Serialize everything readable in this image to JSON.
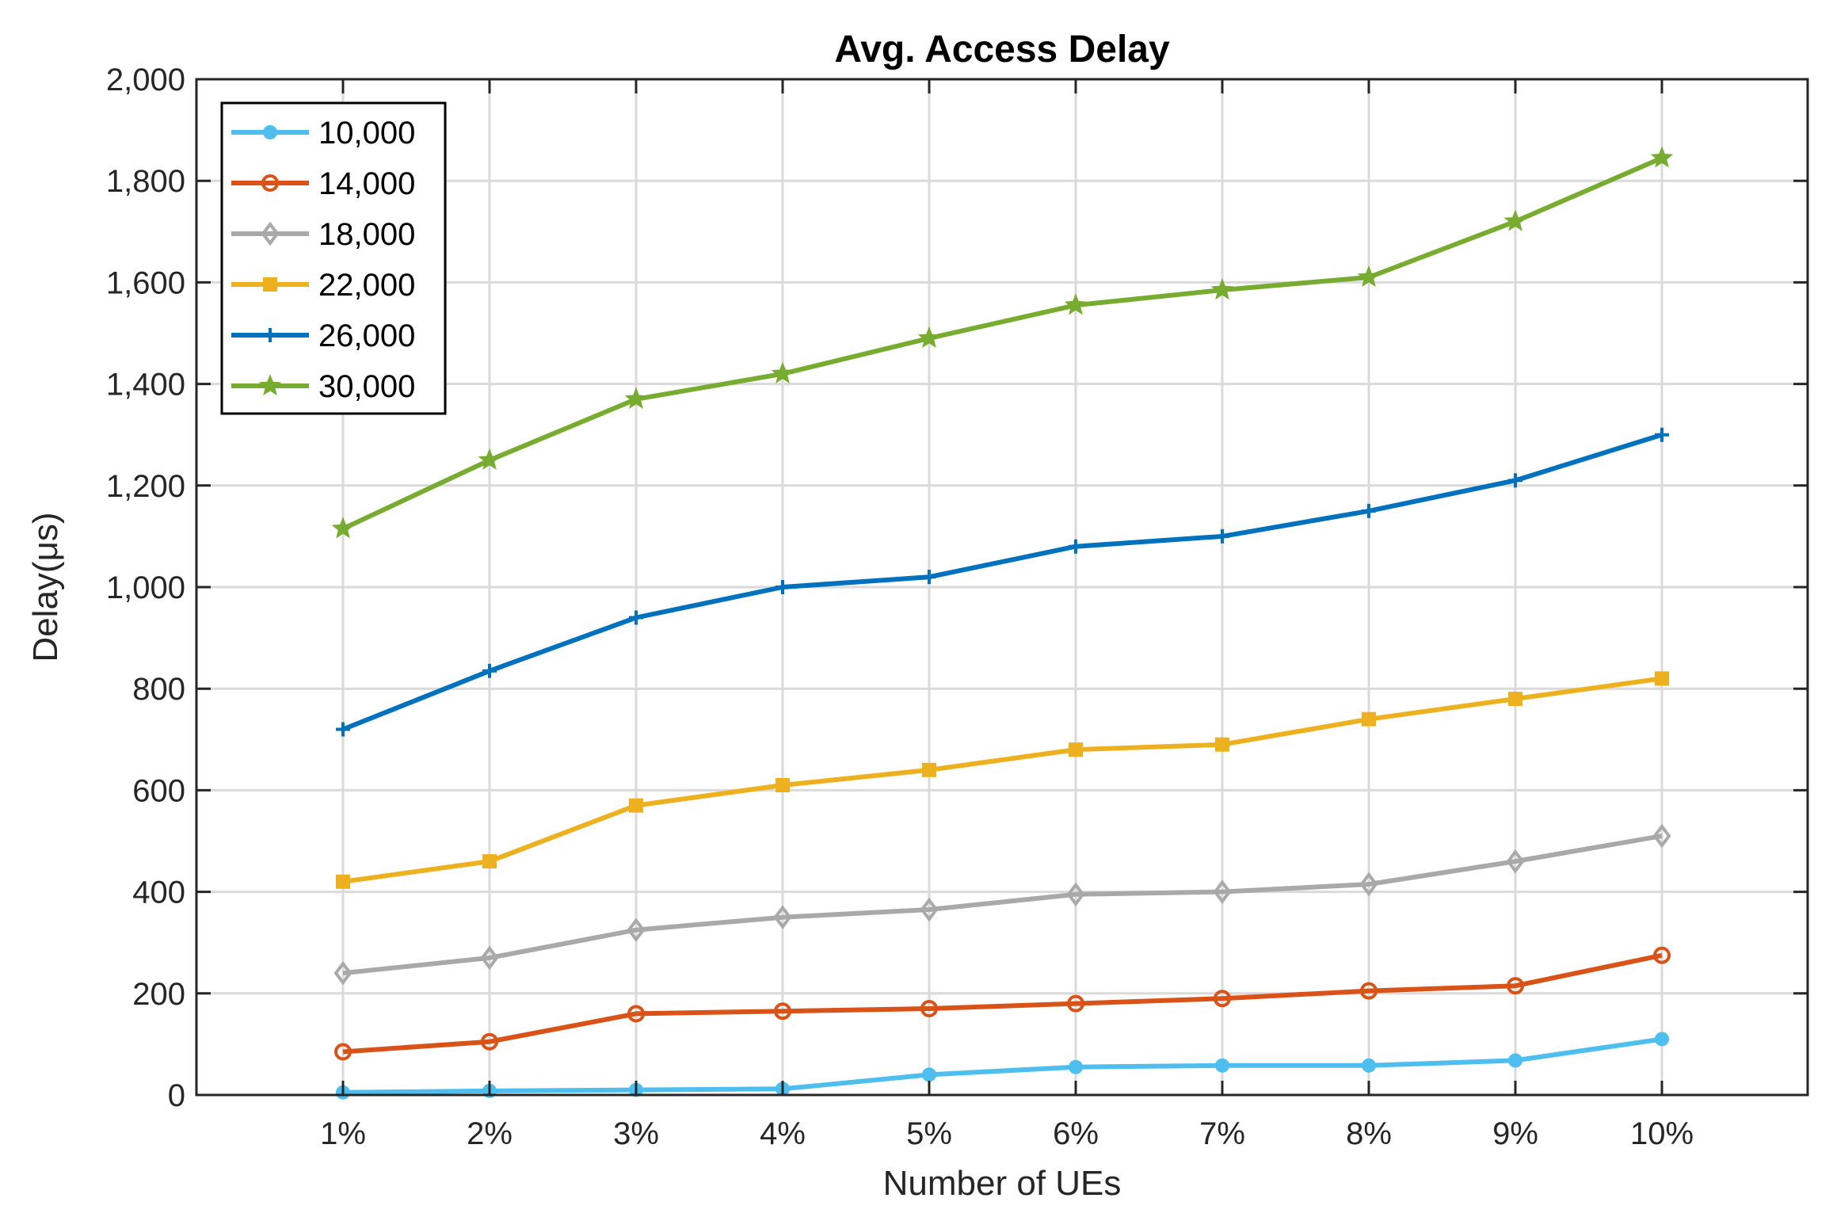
{
  "chart_data": {
    "type": "line",
    "title": "Avg. Access Delay",
    "xlabel": "Number of UEs",
    "ylabel": "Delay(μs)",
    "categories": [
      "1%",
      "2%",
      "3%",
      "4%",
      "5%",
      "6%",
      "7%",
      "8%",
      "9%",
      "10%"
    ],
    "ylim": [
      0,
      2000
    ],
    "yticks": [
      0,
      200,
      400,
      600,
      800,
      1000,
      1200,
      1400,
      1600,
      1800,
      2000
    ],
    "ytick_labels": [
      "0",
      "200",
      "400",
      "600",
      "800",
      "1,000",
      "1,200",
      "1,400",
      "1,600",
      "1,800",
      "2,000"
    ],
    "grid": true,
    "legend_position": "top-left",
    "series": [
      {
        "name": "10,000",
        "color": "#4DBEEE",
        "marker": "dot",
        "values": [
          5,
          8,
          10,
          12,
          40,
          55,
          58,
          58,
          68,
          110
        ]
      },
      {
        "name": "14,000",
        "color": "#D95319",
        "marker": "circle",
        "values": [
          85,
          105,
          160,
          165,
          170,
          180,
          190,
          205,
          215,
          275
        ]
      },
      {
        "name": "18,000",
        "color": "#A9A9A9",
        "marker": "diamond",
        "values": [
          240,
          270,
          325,
          350,
          365,
          395,
          400,
          415,
          460,
          510
        ]
      },
      {
        "name": "22,000",
        "color": "#EDB120",
        "marker": "square",
        "values": [
          420,
          460,
          570,
          610,
          640,
          680,
          690,
          740,
          780,
          820
        ]
      },
      {
        "name": "26,000",
        "color": "#0072BD",
        "marker": "plus",
        "values": [
          720,
          835,
          940,
          1000,
          1020,
          1080,
          1100,
          1150,
          1210,
          1300
        ]
      },
      {
        "name": "30,000",
        "color": "#77AC30",
        "marker": "star",
        "values": [
          1115,
          1250,
          1370,
          1420,
          1490,
          1555,
          1585,
          1610,
          1720,
          1845
        ]
      }
    ]
  }
}
